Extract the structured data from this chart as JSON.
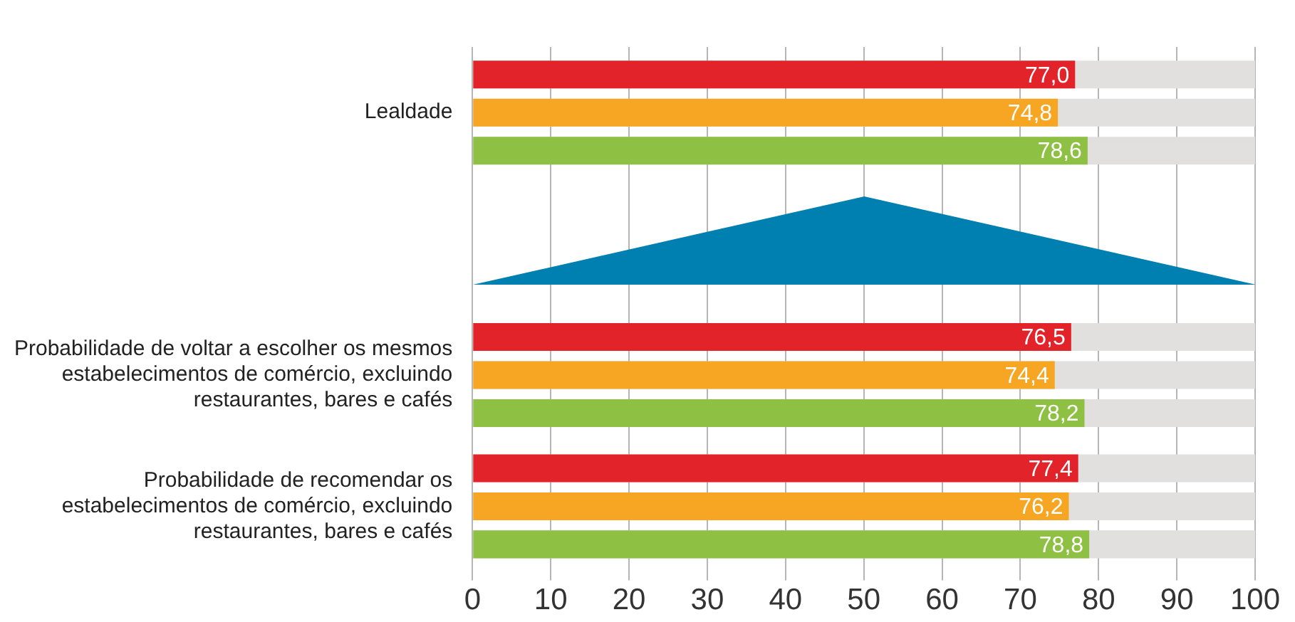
{
  "chart_data": {
    "type": "bar",
    "orientation": "horizontal",
    "categories": [
      "Lealdade",
      null,
      "Probabilidade de voltar a escolher os mesmos estabelecimentos de comércio, excluindo restaurantes, bares e cafés",
      "Probabilidade de recomendar os estabelecimentos de comércio, excluindo restaurantes, bares e cafés"
    ],
    "series": [
      {
        "color": "#e3232a",
        "values": [
          77.0,
          null,
          76.5,
          77.4
        ],
        "value_labels": [
          "77,0",
          null,
          "76,5",
          "77,4"
        ]
      },
      {
        "color": "#f6a623",
        "values": [
          74.8,
          null,
          74.4,
          76.2
        ],
        "value_labels": [
          "74,8",
          null,
          "74,4",
          "76,2"
        ]
      },
      {
        "color": "#8dc043",
        "values": [
          78.6,
          null,
          78.2,
          78.8
        ],
        "value_labels": [
          "78,6",
          null,
          "78,2",
          "78,8"
        ]
      }
    ],
    "xlim": [
      0,
      100
    ],
    "xticks": [
      0,
      10,
      20,
      30,
      40,
      50,
      60,
      70,
      80,
      90,
      100
    ],
    "grid": "x",
    "legend": false
  }
}
